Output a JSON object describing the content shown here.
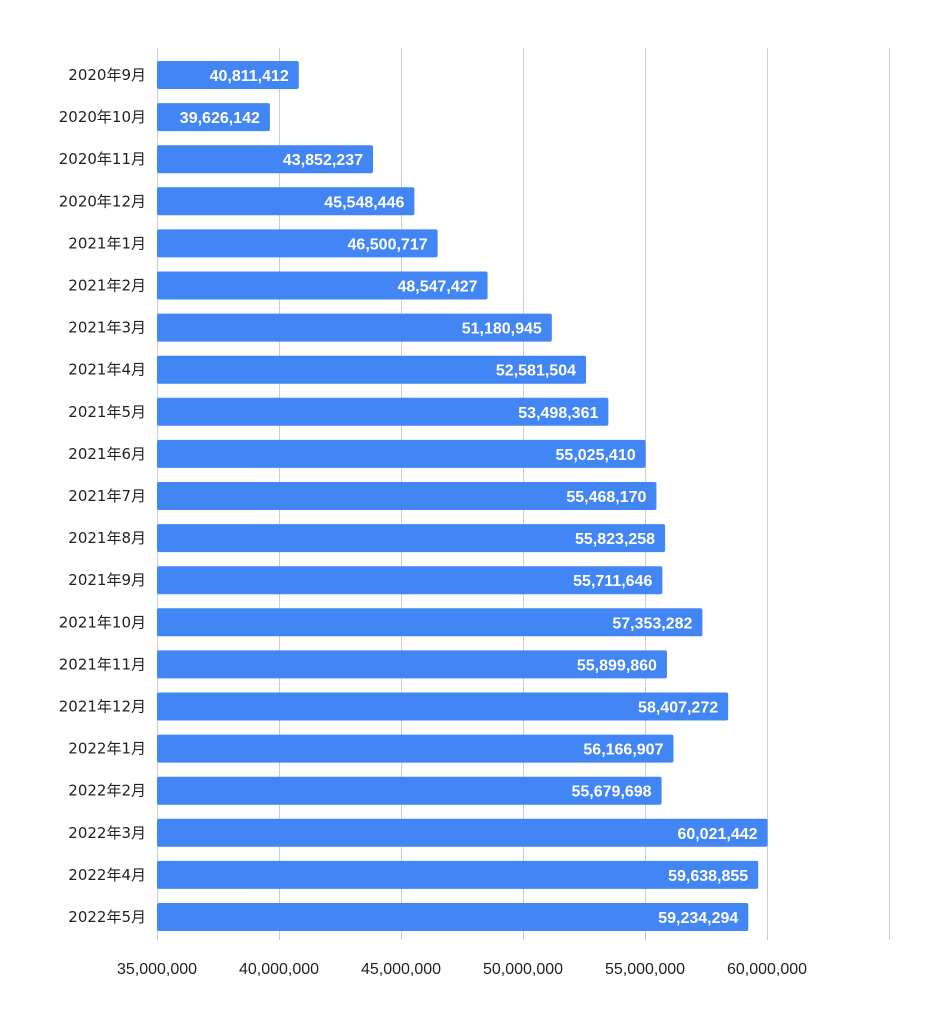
{
  "chart_data": {
    "type": "bar",
    "orientation": "horizontal",
    "title": "",
    "xlabel": "",
    "ylabel": "",
    "categories": [
      "2020年9月",
      "2020年10月",
      "2020年11月",
      "2020年12月",
      "2021年1月",
      "2021年2月",
      "2021年3月",
      "2021年4月",
      "2021年5月",
      "2021年6月",
      "2021年7月",
      "2021年8月",
      "2021年9月",
      "2021年10月",
      "2021年11月",
      "2021年12月",
      "2022年1月",
      "2022年2月",
      "2022年3月",
      "2022年4月",
      "2022年5月"
    ],
    "values": [
      40811412,
      39626142,
      43852237,
      45548446,
      46500717,
      48547427,
      51180945,
      52581504,
      53498361,
      55025410,
      55468170,
      55823258,
      55711646,
      57353282,
      55899860,
      58407272,
      56166907,
      55679698,
      60021442,
      59638855,
      59234294
    ],
    "data_labels": [
      "40,811,412",
      "39,626,142",
      "43,852,237",
      "45,548,446",
      "46,500,717",
      "48,547,427",
      "51,180,945",
      "52,581,504",
      "53,498,361",
      "55,025,410",
      "55,468,170",
      "55,823,258",
      "55,711,646",
      "57,353,282",
      "55,899,860",
      "58,407,272",
      "56,166,907",
      "55,679,698",
      "60,021,442",
      "59,638,855",
      "59,234,294"
    ],
    "xlim": [
      35000000,
      65000000
    ],
    "ticks": [
      35000000,
      40000000,
      45000000,
      50000000,
      55000000,
      60000000
    ],
    "tick_labels": [
      "35,000,000",
      "40,000,000",
      "45,000,000",
      "50,000,000",
      "55,000,000",
      "60,000,000"
    ],
    "gridline_values": [
      35000000,
      40000000,
      45000000,
      50000000,
      55000000,
      60000000,
      65000000
    ],
    "grid": true,
    "legend": "none",
    "bar_color": "#4285f4",
    "gridline_color": "#cccccc",
    "label_color": "#ffffff"
  }
}
